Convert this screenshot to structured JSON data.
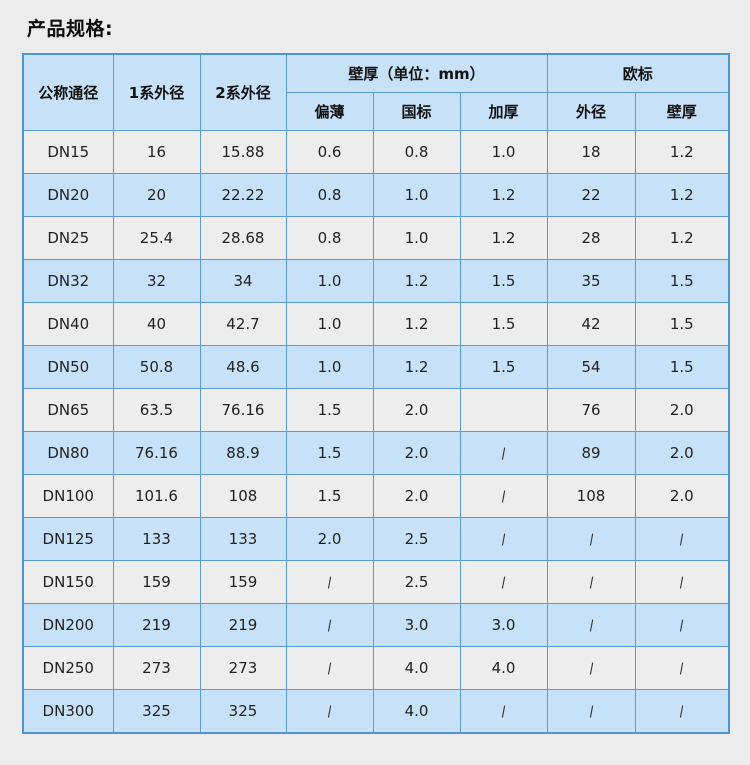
{
  "page": {
    "title": "产品规格:"
  },
  "table": {
    "header": {
      "col_nominal": "公称通径",
      "col_series1": "1系外径",
      "col_series2": "2系外径",
      "group_wall": "壁厚（单位：mm）",
      "col_thin": "偏薄",
      "col_national": "国标",
      "col_thick": "加厚",
      "group_eu": "欧标",
      "col_eu_od": "外径",
      "col_eu_wall": "壁厚"
    },
    "rows": [
      [
        "DN15",
        "16",
        "15.88",
        "0.6",
        "0.8",
        "1.0",
        "18",
        "1.2"
      ],
      [
        "DN20",
        "20",
        "22.22",
        "0.8",
        "1.0",
        "1.2",
        "22",
        "1.2"
      ],
      [
        "DN25",
        "25.4",
        "28.68",
        "0.8",
        "1.0",
        "1.2",
        "28",
        "1.2"
      ],
      [
        "DN32",
        "32",
        "34",
        "1.0",
        "1.2",
        "1.5",
        "35",
        "1.5"
      ],
      [
        "DN40",
        "40",
        "42.7",
        "1.0",
        "1.2",
        "1.5",
        "42",
        "1.5"
      ],
      [
        "DN50",
        "50.8",
        "48.6",
        "1.0",
        "1.2",
        "1.5",
        "54",
        "1.5"
      ],
      [
        "DN65",
        "63.5",
        "76.16",
        "1.5",
        "2.0",
        "",
        "76",
        "2.0"
      ],
      [
        "DN80",
        "76.16",
        "88.9",
        "1.5",
        "2.0",
        "\\",
        "89",
        "2.0"
      ],
      [
        "DN100",
        "101.6",
        "108",
        "1.5",
        "2.0",
        "\\",
        "108",
        "2.0"
      ],
      [
        "DN125",
        "133",
        "133",
        "2.0",
        "2.5",
        "\\",
        "\\",
        "\\"
      ],
      [
        "DN150",
        "159",
        "159",
        "\\",
        "2.5",
        "\\",
        "\\",
        "\\"
      ],
      [
        "DN200",
        "219",
        "219",
        "\\",
        "3.0",
        "3.0",
        "\\",
        "\\"
      ],
      [
        "DN250",
        "273",
        "273",
        "\\",
        "4.0",
        "4.0",
        "\\",
        "\\"
      ],
      [
        "DN300",
        "325",
        "325",
        "\\",
        "4.0",
        "\\",
        "\\",
        "\\"
      ]
    ]
  },
  "colors": {
    "border_blue": "#5b9bd5",
    "row_blue": "#c7e2f8",
    "row_gray": "#ededed",
    "page_bg": "#ececec",
    "text": "#222222"
  }
}
